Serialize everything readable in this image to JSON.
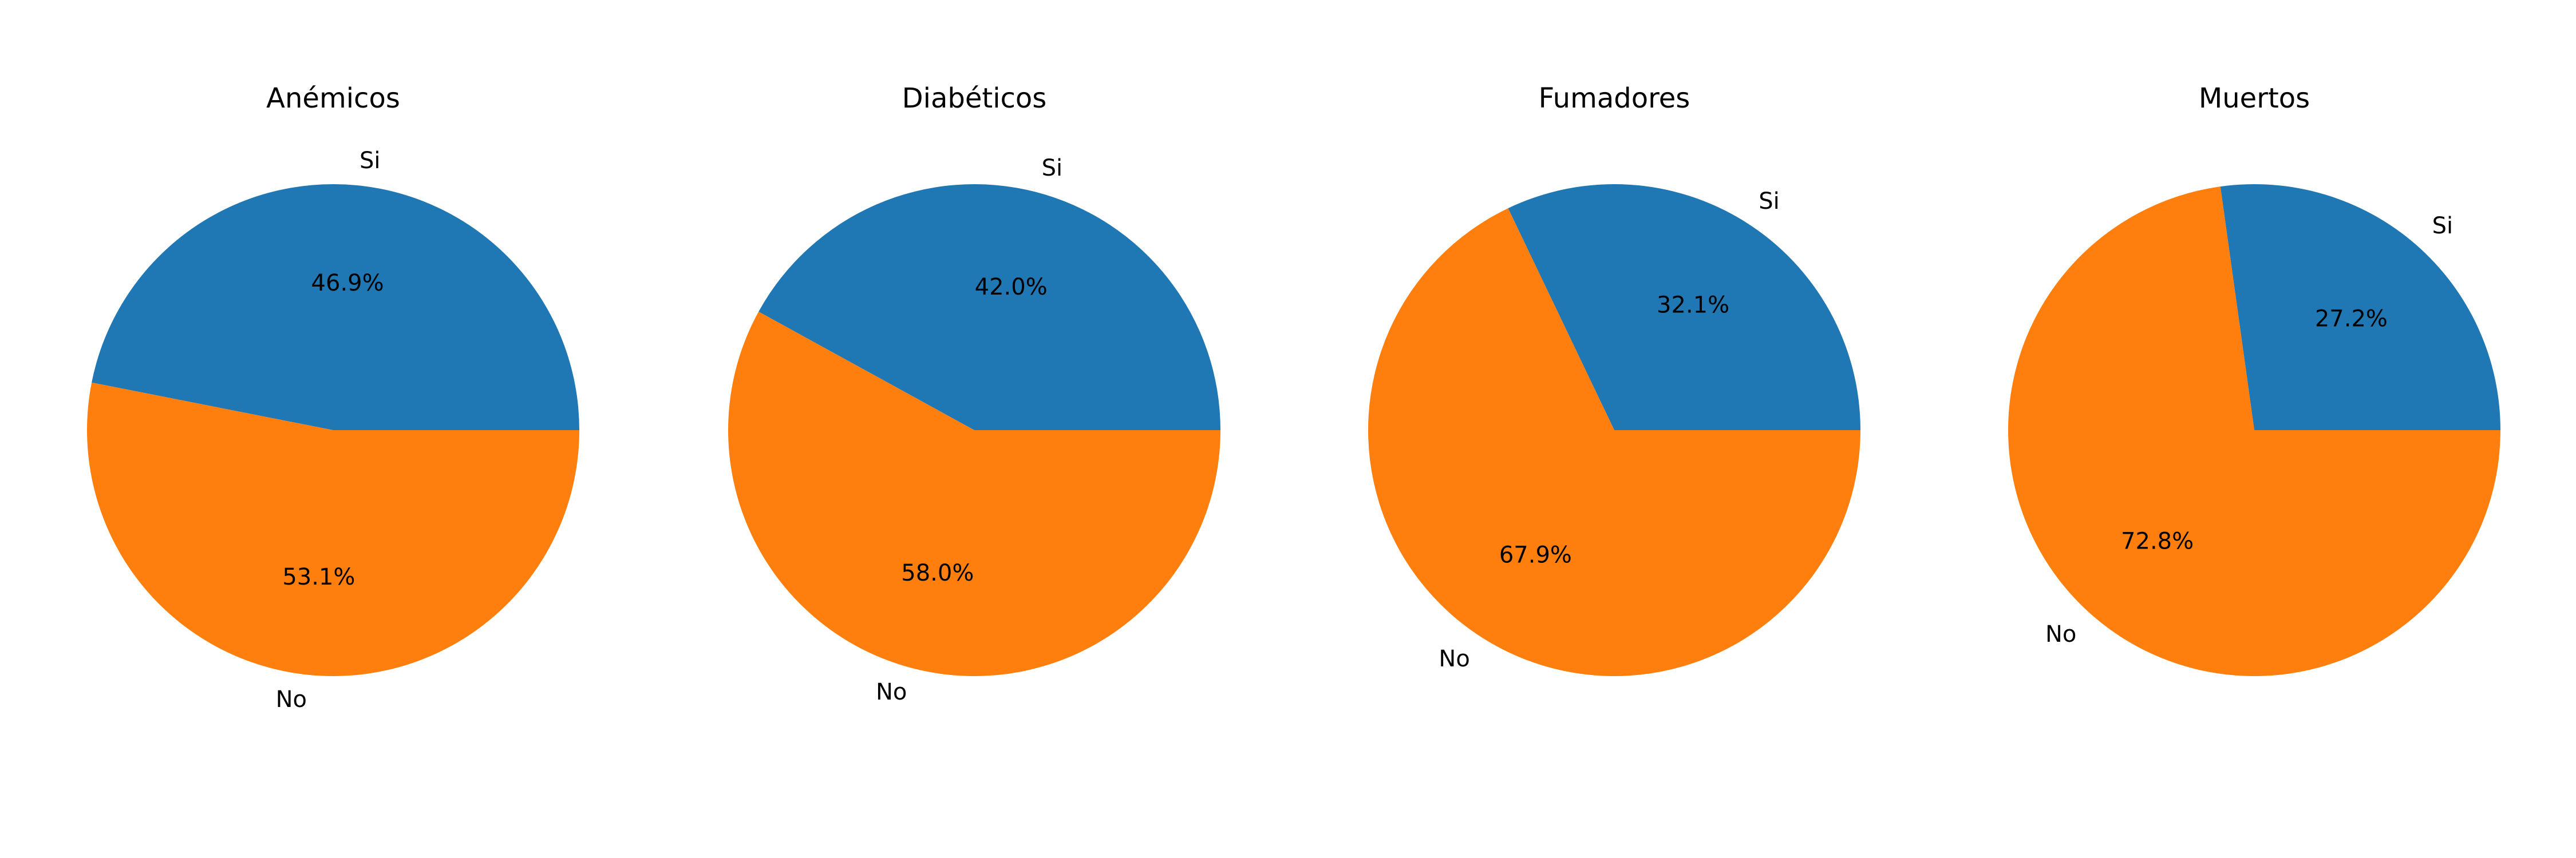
{
  "chart_data": [
    {
      "type": "pie",
      "title": "Anémicos",
      "categories": [
        "Si",
        "No"
      ],
      "values": [
        46.9,
        53.1
      ],
      "percent_labels": [
        "46.9%",
        "53.1%"
      ],
      "colors": [
        "#1f77b4",
        "#ff7f0e"
      ]
    },
    {
      "type": "pie",
      "title": "Diabéticos",
      "categories": [
        "Si",
        "No"
      ],
      "values": [
        42.0,
        58.0
      ],
      "percent_labels": [
        "42.0%",
        "58.0%"
      ],
      "colors": [
        "#1f77b4",
        "#ff7f0e"
      ]
    },
    {
      "type": "pie",
      "title": "Fumadores",
      "categories": [
        "Si",
        "No"
      ],
      "values": [
        32.1,
        67.9
      ],
      "percent_labels": [
        "32.1%",
        "67.9%"
      ],
      "colors": [
        "#1f77b4",
        "#ff7f0e"
      ]
    },
    {
      "type": "pie",
      "title": "Muertos",
      "categories": [
        "Si",
        "No"
      ],
      "values": [
        27.2,
        72.8
      ],
      "percent_labels": [
        "27.2%",
        "72.8%"
      ],
      "colors": [
        "#1f77b4",
        "#ff7f0e"
      ]
    }
  ]
}
